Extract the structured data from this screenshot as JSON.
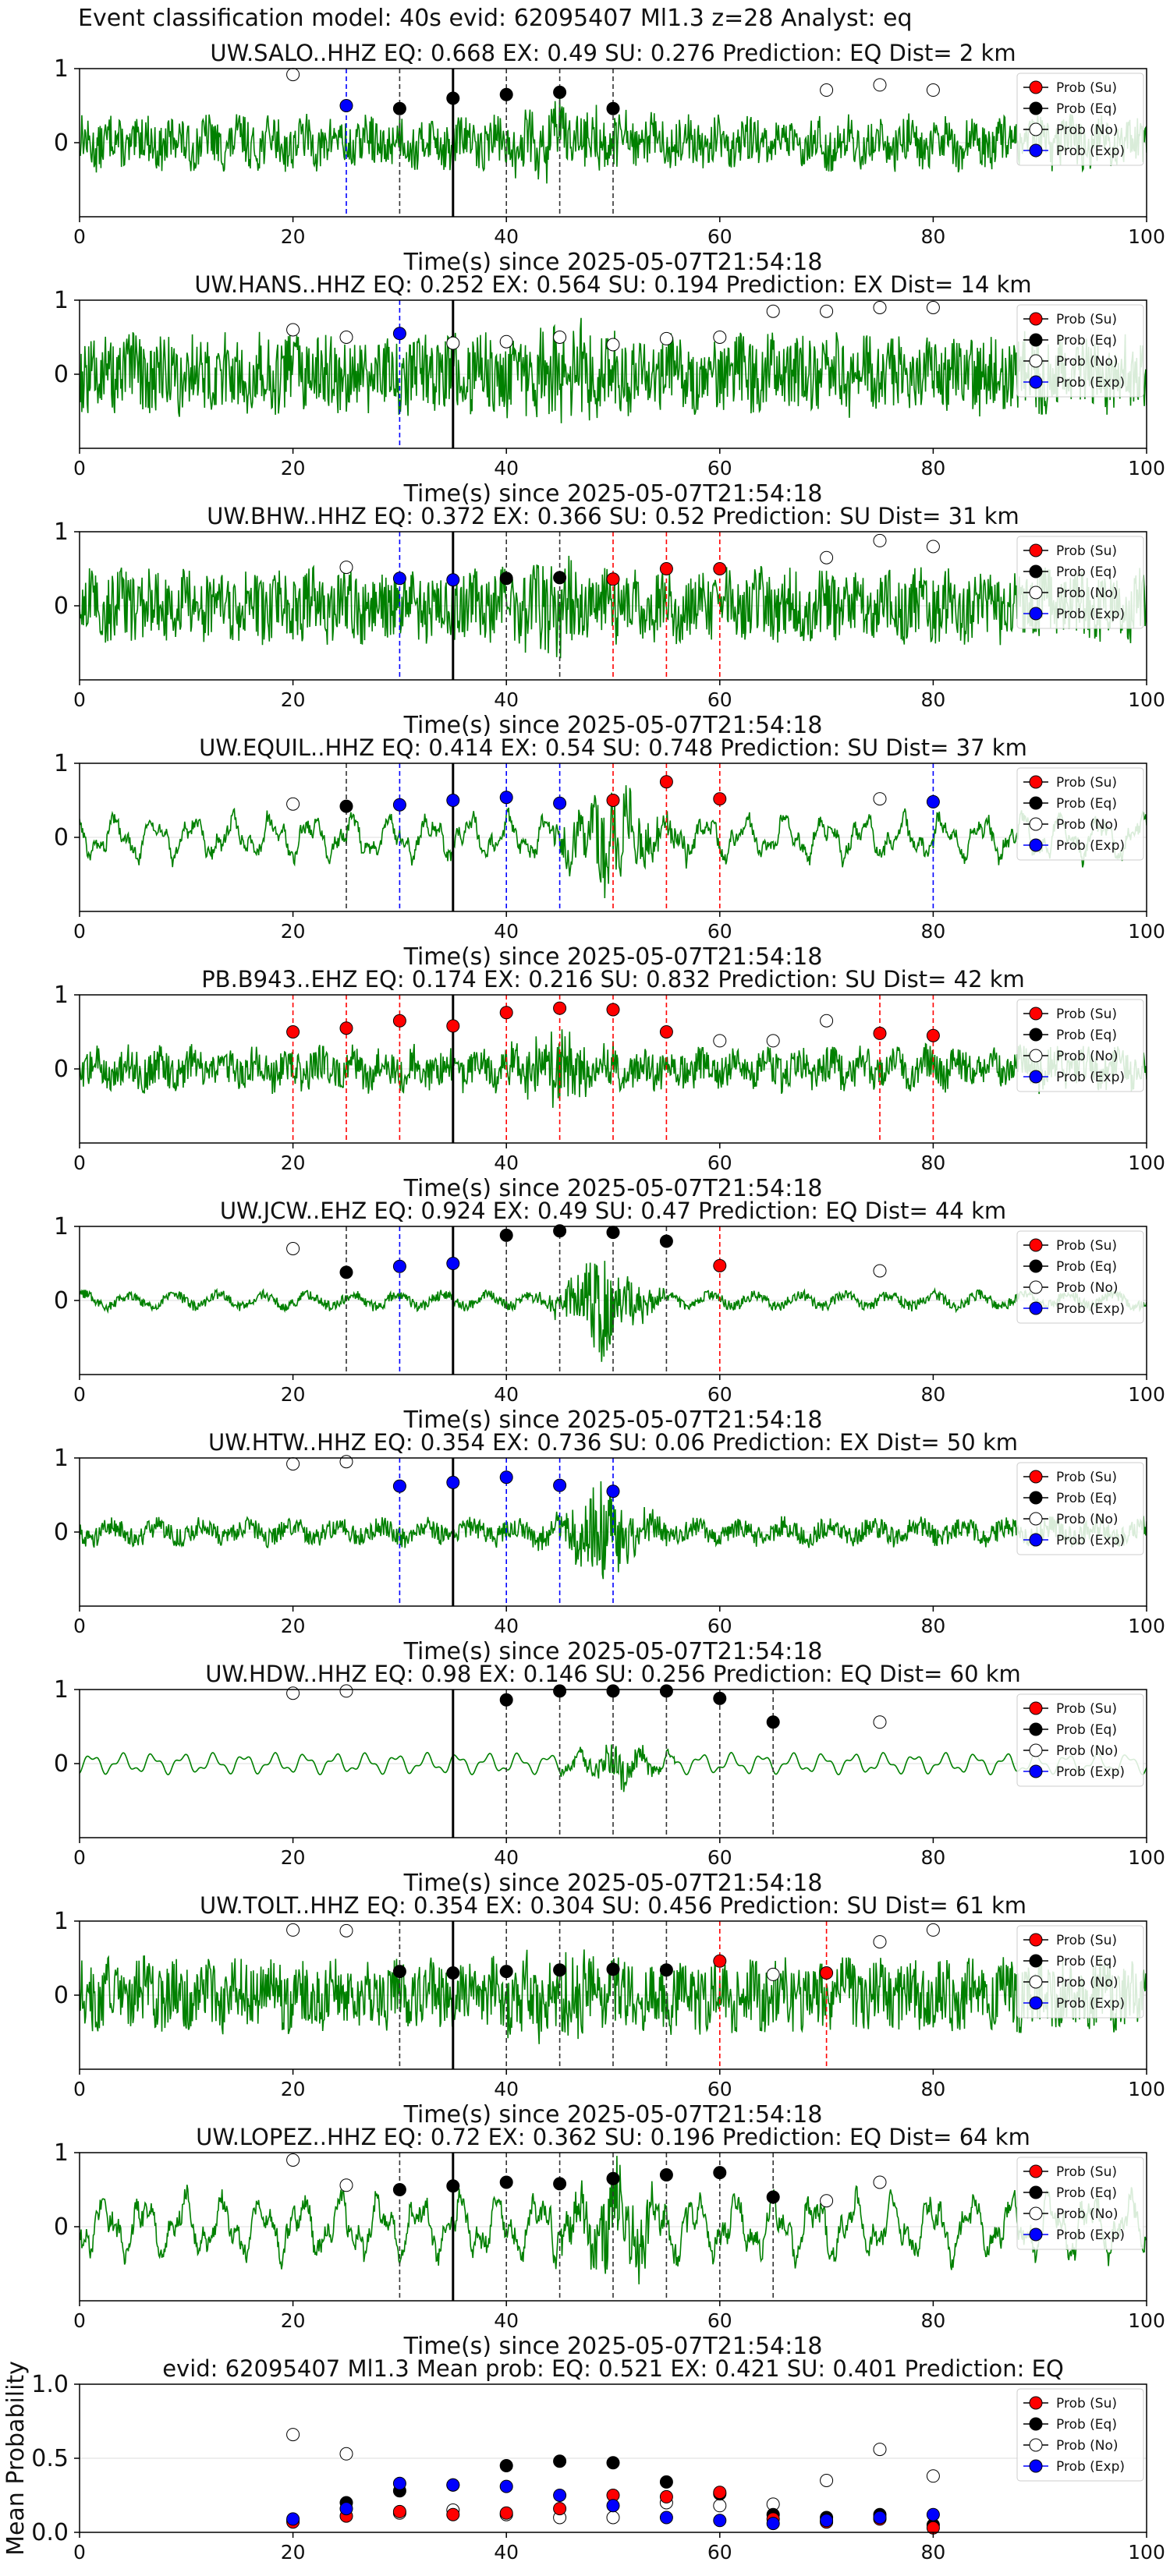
{
  "suptitle": "Event classification model: 40s evid: 62095407 Ml1.3 z=28 Analyst: eq",
  "colors": {
    "waveform": "#008000",
    "su": "#ff0000",
    "eq": "#000000",
    "no": "#ffffff",
    "exp": "#0000ff",
    "grid": "#dddddd"
  },
  "legend_labels": [
    "Prob (Su)",
    "Prob (Eq)",
    "Prob (No)",
    "Prob (Exp)"
  ],
  "xlabel": "Time(s) since 2025-05-07T21:54:18",
  "xticks": [
    0,
    20,
    40,
    60,
    80,
    100
  ],
  "chart_data": [
    {
      "type": "line",
      "title": "UW.SALO..HHZ   EQ: 0.668   EX: 0.49   SU: 0.276   Prediction: EQ    Dist= 2 km",
      "xlim": [
        0,
        100
      ],
      "ylim": [
        -1,
        1
      ],
      "yticks": [
        0,
        1
      ],
      "legend": "top-right",
      "grid": true,
      "trace": {
        "amp": 0.28,
        "style": "noise"
      },
      "no": [
        [
          20,
          0.92
        ],
        [
          70,
          0.71
        ],
        [
          75,
          0.78
        ],
        [
          80,
          0.71
        ]
      ],
      "eq": [
        [
          30,
          0.46
        ],
        [
          35,
          0.6
        ],
        [
          40,
          0.65
        ],
        [
          45,
          0.68
        ],
        [
          50,
          0.46
        ]
      ],
      "su": [],
      "exp": [
        [
          25,
          0.5
        ]
      ],
      "vlines": [
        [
          25,
          "exp"
        ],
        [
          30,
          "eq"
        ],
        [
          35,
          "pick"
        ],
        [
          40,
          "eq"
        ],
        [
          45,
          "eq"
        ],
        [
          50,
          "eq"
        ]
      ]
    },
    {
      "type": "line",
      "title": "UW.HANS..HHZ   EQ: 0.252   EX: 0.564   SU: 0.194   Prediction: EX    Dist= 14 km",
      "xlim": [
        0,
        100
      ],
      "ylim": [
        -1,
        1
      ],
      "yticks": [
        0,
        1
      ],
      "legend": "top-right",
      "grid": true,
      "trace": {
        "amp": 0.45,
        "style": "noise"
      },
      "no": [
        [
          20,
          0.6
        ],
        [
          25,
          0.5
        ],
        [
          35,
          0.42
        ],
        [
          40,
          0.44
        ],
        [
          45,
          0.5
        ],
        [
          50,
          0.4
        ],
        [
          55,
          0.48
        ],
        [
          60,
          0.5
        ],
        [
          65,
          0.85
        ],
        [
          70,
          0.85
        ],
        [
          75,
          0.9
        ],
        [
          80,
          0.9
        ]
      ],
      "eq": [],
      "su": [],
      "exp": [
        [
          30,
          0.55
        ]
      ],
      "vlines": [
        [
          30,
          "exp"
        ],
        [
          35,
          "pick"
        ]
      ]
    },
    {
      "type": "line",
      "title": "UW.BHW..HHZ   EQ: 0.372   EX: 0.366   SU: 0.52   Prediction: SU    Dist= 31 km",
      "xlim": [
        0,
        100
      ],
      "ylim": [
        -1,
        1
      ],
      "yticks": [
        0,
        1
      ],
      "legend": "top-right",
      "grid": true,
      "trace": {
        "amp": 0.4,
        "style": "noise"
      },
      "no": [
        [
          25,
          0.52
        ],
        [
          70,
          0.65
        ],
        [
          75,
          0.88
        ],
        [
          80,
          0.8
        ]
      ],
      "eq": [
        [
          40,
          0.37
        ],
        [
          45,
          0.38
        ]
      ],
      "su": [
        [
          50,
          0.36
        ],
        [
          55,
          0.5
        ],
        [
          60,
          0.5
        ]
      ],
      "exp": [
        [
          30,
          0.37
        ],
        [
          35,
          0.35
        ]
      ],
      "vlines": [
        [
          30,
          "exp"
        ],
        [
          35,
          "pick"
        ],
        [
          40,
          "eq"
        ],
        [
          45,
          "eq"
        ],
        [
          50,
          "su"
        ],
        [
          55,
          "su"
        ],
        [
          60,
          "su"
        ]
      ]
    },
    {
      "type": "line",
      "title": "UW.EQUIL..HHZ   EQ: 0.414   EX: 0.54   SU: 0.748   Prediction: SU    Dist= 37 km",
      "xlim": [
        0,
        100
      ],
      "ylim": [
        -1,
        1
      ],
      "yticks": [
        0,
        1
      ],
      "legend": "top-right",
      "grid": true,
      "trace": {
        "amp": 0.35,
        "style": "wavy"
      },
      "no": [
        [
          20,
          0.45
        ],
        [
          75,
          0.52
        ]
      ],
      "eq": [
        [
          25,
          0.42
        ]
      ],
      "su": [
        [
          50,
          0.5
        ],
        [
          55,
          0.75
        ],
        [
          60,
          0.52
        ]
      ],
      "exp": [
        [
          30,
          0.44
        ],
        [
          35,
          0.5
        ],
        [
          40,
          0.54
        ],
        [
          45,
          0.46
        ],
        [
          80,
          0.48
        ]
      ],
      "vlines": [
        [
          25,
          "eq"
        ],
        [
          30,
          "exp"
        ],
        [
          35,
          "pick"
        ],
        [
          40,
          "exp"
        ],
        [
          45,
          "exp"
        ],
        [
          50,
          "su"
        ],
        [
          55,
          "su"
        ],
        [
          60,
          "su"
        ],
        [
          80,
          "exp"
        ]
      ]
    },
    {
      "type": "line",
      "title": "PB.B943..EHZ   EQ: 0.174   EX: 0.216   SU: 0.832   Prediction: SU    Dist= 42 km",
      "xlim": [
        0,
        100
      ],
      "ylim": [
        -1,
        1
      ],
      "yticks": [
        0,
        1
      ],
      "legend": "top-right",
      "grid": true,
      "trace": {
        "amp": 0.22,
        "style": "noise"
      },
      "no": [
        [
          60,
          0.38
        ],
        [
          65,
          0.38
        ],
        [
          70,
          0.65
        ]
      ],
      "eq": [],
      "su": [
        [
          20,
          0.5
        ],
        [
          25,
          0.55
        ],
        [
          30,
          0.65
        ],
        [
          35,
          0.58
        ],
        [
          40,
          0.76
        ],
        [
          45,
          0.82
        ],
        [
          50,
          0.8
        ],
        [
          55,
          0.5
        ],
        [
          75,
          0.48
        ],
        [
          80,
          0.45
        ]
      ],
      "exp": [],
      "vlines": [
        [
          20,
          "su"
        ],
        [
          25,
          "su"
        ],
        [
          30,
          "su"
        ],
        [
          35,
          "pick"
        ],
        [
          40,
          "su"
        ],
        [
          45,
          "su"
        ],
        [
          50,
          "su"
        ],
        [
          55,
          "su"
        ],
        [
          75,
          "su"
        ],
        [
          80,
          "su"
        ]
      ]
    },
    {
      "type": "line",
      "title": "UW.JCW..EHZ   EQ: 0.924   EX: 0.49   SU: 0.47   Prediction: EQ    Dist= 44 km",
      "xlim": [
        0,
        100
      ],
      "ylim": [
        -1,
        1
      ],
      "yticks": [
        0,
        1
      ],
      "legend": "top-right",
      "grid": true,
      "trace": {
        "amp": 0.07,
        "style": "burst"
      },
      "no": [
        [
          20,
          0.7
        ],
        [
          75,
          0.4
        ]
      ],
      "eq": [
        [
          25,
          0.38
        ],
        [
          40,
          0.88
        ],
        [
          45,
          0.94
        ],
        [
          50,
          0.92
        ],
        [
          55,
          0.8
        ]
      ],
      "su": [
        [
          60,
          0.47
        ]
      ],
      "exp": [
        [
          30,
          0.46
        ],
        [
          35,
          0.5
        ]
      ],
      "vlines": [
        [
          25,
          "eq"
        ],
        [
          30,
          "exp"
        ],
        [
          35,
          "pick"
        ],
        [
          40,
          "eq"
        ],
        [
          45,
          "eq"
        ],
        [
          50,
          "eq"
        ],
        [
          55,
          "eq"
        ],
        [
          60,
          "su"
        ]
      ]
    },
    {
      "type": "line",
      "title": "UW.HTW..HHZ   EQ: 0.354   EX: 0.736   SU: 0.06   Prediction: EX    Dist= 50 km",
      "xlim": [
        0,
        100
      ],
      "ylim": [
        -1,
        1
      ],
      "yticks": [
        0,
        1
      ],
      "legend": "top-right",
      "grid": true,
      "trace": {
        "amp": 0.14,
        "style": "burst"
      },
      "no": [
        [
          20,
          0.92
        ],
        [
          25,
          0.95
        ]
      ],
      "eq": [],
      "su": [],
      "exp": [
        [
          30,
          0.62
        ],
        [
          35,
          0.67
        ],
        [
          40,
          0.74
        ],
        [
          45,
          0.63
        ],
        [
          50,
          0.55
        ]
      ],
      "vlines": [
        [
          30,
          "exp"
        ],
        [
          35,
          "pick"
        ],
        [
          40,
          "exp"
        ],
        [
          45,
          "exp"
        ],
        [
          50,
          "exp"
        ]
      ]
    },
    {
      "type": "line",
      "title": "UW.HDW..HHZ   EQ: 0.98   EX: 0.146   SU: 0.256   Prediction: EQ    Dist= 60 km",
      "xlim": [
        0,
        100
      ],
      "ylim": [
        -1,
        1
      ],
      "yticks": [
        0,
        1
      ],
      "legend": "top-right",
      "grid": true,
      "trace": {
        "amp": 0.15,
        "style": "smooth"
      },
      "no": [
        [
          20,
          0.95
        ],
        [
          25,
          0.98
        ],
        [
          75,
          0.56
        ]
      ],
      "eq": [
        [
          40,
          0.86
        ],
        [
          45,
          0.98
        ],
        [
          50,
          0.98
        ],
        [
          55,
          0.98
        ],
        [
          60,
          0.88
        ],
        [
          65,
          0.56
        ]
      ],
      "su": [],
      "exp": [],
      "vlines": [
        [
          35,
          "pick"
        ],
        [
          40,
          "eq"
        ],
        [
          45,
          "eq"
        ],
        [
          50,
          "eq"
        ],
        [
          55,
          "eq"
        ],
        [
          60,
          "eq"
        ],
        [
          65,
          "eq"
        ]
      ]
    },
    {
      "type": "line",
      "title": "UW.TOLT..HHZ   EQ: 0.354   EX: 0.304   SU: 0.456   Prediction: SU    Dist= 61 km",
      "xlim": [
        0,
        100
      ],
      "ylim": [
        -1,
        1
      ],
      "yticks": [
        0,
        1
      ],
      "legend": "top-right",
      "grid": true,
      "trace": {
        "amp": 0.4,
        "style": "noise"
      },
      "no": [
        [
          20,
          0.88
        ],
        [
          25,
          0.87
        ],
        [
          65,
          0.28
        ],
        [
          75,
          0.72
        ],
        [
          80,
          0.88
        ]
      ],
      "eq": [
        [
          30,
          0.32
        ],
        [
          35,
          0.3
        ],
        [
          40,
          0.32
        ],
        [
          45,
          0.34
        ],
        [
          50,
          0.35
        ],
        [
          55,
          0.34
        ]
      ],
      "su": [
        [
          60,
          0.46
        ],
        [
          70,
          0.3
        ]
      ],
      "exp": [],
      "vlines": [
        [
          30,
          "eq"
        ],
        [
          35,
          "pick"
        ],
        [
          40,
          "eq"
        ],
        [
          45,
          "eq"
        ],
        [
          50,
          "eq"
        ],
        [
          55,
          "eq"
        ],
        [
          60,
          "su"
        ],
        [
          70,
          "su"
        ]
      ]
    },
    {
      "type": "line",
      "title": "UW.LOPEZ..HHZ   EQ: 0.72   EX: 0.362   SU: 0.196   Prediction: EQ    Dist= 64 km",
      "xlim": [
        0,
        100
      ],
      "ylim": [
        -1,
        1
      ],
      "yticks": [
        0,
        1
      ],
      "legend": "top-right",
      "grid": true,
      "trace": {
        "amp": 0.5,
        "style": "wavy"
      },
      "no": [
        [
          20,
          0.9
        ],
        [
          25,
          0.56
        ],
        [
          70,
          0.35
        ],
        [
          75,
          0.6
        ]
      ],
      "eq": [
        [
          30,
          0.5
        ],
        [
          35,
          0.55
        ],
        [
          40,
          0.6
        ],
        [
          45,
          0.58
        ],
        [
          50,
          0.65
        ],
        [
          55,
          0.7
        ],
        [
          60,
          0.73
        ],
        [
          65,
          0.4
        ]
      ],
      "su": [],
      "exp": [],
      "vlines": [
        [
          30,
          "eq"
        ],
        [
          35,
          "pick"
        ],
        [
          40,
          "eq"
        ],
        [
          45,
          "eq"
        ],
        [
          50,
          "eq"
        ],
        [
          55,
          "eq"
        ],
        [
          60,
          "eq"
        ],
        [
          65,
          "eq"
        ]
      ]
    },
    {
      "type": "scatter",
      "title": "evid: 62095407   Ml1.3   Mean prob:   EQ: 0.521   EX: 0.421   SU: 0.401   Prediction: EQ",
      "ylabel": "Mean Probability",
      "xlim": [
        0,
        100
      ],
      "ylim": [
        0,
        1
      ],
      "yticks": [
        0,
        0.5,
        1
      ],
      "yticklabels": [
        "0.0",
        "0.5",
        "1.0"
      ],
      "legend": "top-right",
      "grid": true,
      "no": [
        [
          20,
          0.66
        ],
        [
          25,
          0.53
        ],
        [
          30,
          0.13
        ],
        [
          35,
          0.15
        ],
        [
          40,
          0.12
        ],
        [
          45,
          0.1
        ],
        [
          50,
          0.1
        ],
        [
          55,
          0.2
        ],
        [
          60,
          0.18
        ],
        [
          65,
          0.19
        ],
        [
          70,
          0.35
        ],
        [
          75,
          0.56
        ],
        [
          80,
          0.38
        ]
      ],
      "eq": [
        [
          20,
          0.08
        ],
        [
          25,
          0.2
        ],
        [
          30,
          0.28
        ],
        [
          35,
          0.32
        ],
        [
          40,
          0.45
        ],
        [
          45,
          0.48
        ],
        [
          50,
          0.47
        ],
        [
          55,
          0.34
        ],
        [
          60,
          0.26
        ],
        [
          65,
          0.12
        ],
        [
          70,
          0.1
        ],
        [
          75,
          0.12
        ],
        [
          80,
          0.05
        ]
      ],
      "su": [
        [
          20,
          0.07
        ],
        [
          25,
          0.11
        ],
        [
          30,
          0.14
        ],
        [
          35,
          0.12
        ],
        [
          40,
          0.13
        ],
        [
          45,
          0.16
        ],
        [
          50,
          0.25
        ],
        [
          55,
          0.24
        ],
        [
          60,
          0.27
        ],
        [
          65,
          0.09
        ],
        [
          70,
          0.07
        ],
        [
          75,
          0.09
        ],
        [
          80,
          0.03
        ]
      ],
      "exp": [
        [
          20,
          0.09
        ],
        [
          25,
          0.16
        ],
        [
          30,
          0.33
        ],
        [
          35,
          0.32
        ],
        [
          40,
          0.31
        ],
        [
          45,
          0.25
        ],
        [
          50,
          0.18
        ],
        [
          55,
          0.1
        ],
        [
          60,
          0.08
        ],
        [
          65,
          0.06
        ],
        [
          70,
          0.08
        ],
        [
          75,
          0.1
        ],
        [
          80,
          0.12
        ]
      ],
      "vlines": []
    }
  ]
}
